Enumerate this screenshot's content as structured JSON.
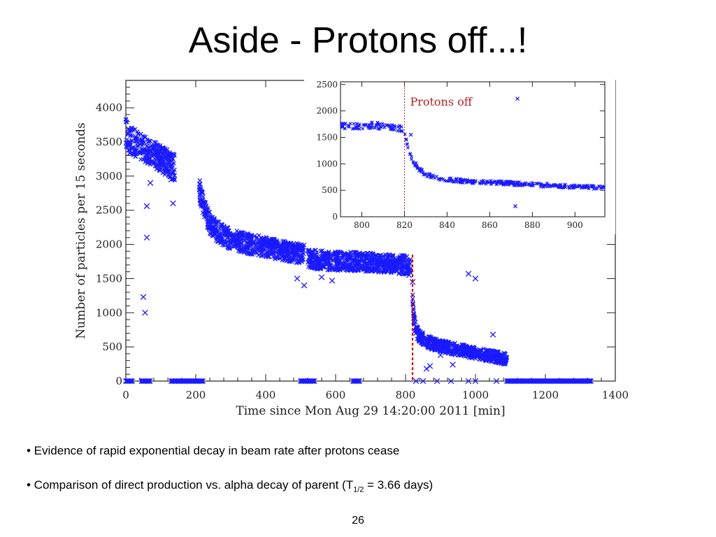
{
  "slide": {
    "title": "Aside - Protons off...!",
    "bullet1": "• Evidence of rapid exponential decay in beam rate after protons cease",
    "bullet2_pre": "• Comparison of direct production vs. alpha decay of parent (T",
    "bullet2_sub": "1/2",
    "bullet2_post": " = 3.66 days)",
    "page_number": "26"
  },
  "chart_data": [
    {
      "type": "scatter",
      "marker": "x",
      "color": "#1a1aff",
      "xlabel": "Time since Mon Aug 29 14:20:00 2011 [min]",
      "ylabel": "Number of particles per 15 seconds",
      "xlim": [
        0,
        1400
      ],
      "ylim": [
        0,
        4400
      ],
      "xticks": [
        0,
        200,
        400,
        600,
        800,
        1000,
        1200,
        1400
      ],
      "yticks": [
        0,
        500,
        1000,
        1500,
        2000,
        2500,
        3000,
        3500,
        4000
      ],
      "protons_off_x": 820,
      "segments": [
        {
          "x": [
            0,
            5,
            10,
            15,
            20,
            30,
            40,
            50,
            60,
            70,
            80,
            90,
            100,
            110,
            120,
            130,
            140
          ],
          "y": [
            3650,
            3600,
            3550,
            3530,
            3500,
            3480,
            3450,
            3420,
            3390,
            3360,
            3320,
            3290,
            3250,
            3220,
            3190,
            3150,
            3120
          ]
        },
        {
          "x": [
            210,
            220,
            230,
            240,
            250,
            260,
            280,
            300,
            320,
            340,
            360,
            380,
            400,
            420,
            440,
            460,
            480,
            500,
            510
          ],
          "y": [
            2800,
            2600,
            2450,
            2320,
            2250,
            2200,
            2130,
            2080,
            2050,
            2020,
            2000,
            1990,
            1960,
            1940,
            1920,
            1900,
            1880,
            1860,
            1850
          ]
        },
        {
          "x": [
            520,
            540,
            560,
            580,
            600,
            620,
            640,
            660,
            680,
            700,
            720,
            740,
            760,
            780,
            800,
            815
          ],
          "y": [
            1800,
            1780,
            1770,
            1760,
            1760,
            1750,
            1750,
            1750,
            1740,
            1740,
            1730,
            1720,
            1720,
            1710,
            1700,
            1700
          ]
        },
        {
          "x": [
            820,
            822,
            825,
            830,
            835,
            840,
            850,
            860,
            870,
            880,
            900,
            920,
            940,
            960,
            980,
            1000,
            1020,
            1040,
            1060,
            1080,
            1090
          ],
          "y": [
            1200,
            1000,
            850,
            750,
            690,
            650,
            610,
            580,
            560,
            540,
            510,
            490,
            470,
            450,
            430,
            410,
            390,
            370,
            350,
            330,
            320
          ]
        }
      ],
      "outliers": {
        "x": [
          50,
          55,
          60,
          60,
          65,
          70,
          135,
          130,
          490,
          510,
          560,
          590,
          800,
          810,
          820,
          860,
          870,
          900,
          935,
          980,
          1000,
          1050
        ],
        "y": [
          1230,
          1000,
          2560,
          2100,
          3200,
          2900,
          2600,
          2950,
          1500,
          1400,
          1520,
          1470,
          1580,
          1550,
          1450,
          180,
          220,
          380,
          240,
          1570,
          1500,
          680
        ]
      },
      "zero_runs": [
        [
          0,
          20
        ],
        [
          45,
          70
        ],
        [
          130,
          220
        ],
        [
          500,
          540
        ],
        [
          650,
          670
        ],
        [
          1090,
          1330
        ]
      ],
      "zero_points": [
        830,
        850,
        890,
        930,
        980,
        1000,
        1060
      ]
    },
    {
      "type": "scatter",
      "marker": "x",
      "color": "#1a1aff",
      "annotation": "Protons off",
      "xlim": [
        790,
        914
      ],
      "ylim": [
        0,
        2550
      ],
      "xticks": [
        800,
        820,
        840,
        860,
        880,
        900
      ],
      "yticks": [
        0,
        500,
        1000,
        1500,
        2000,
        2500
      ],
      "protons_off_x": 820,
      "before": {
        "x": [
          790,
          793,
          796,
          799,
          802,
          805,
          808,
          811,
          814,
          817,
          819
        ],
        "y": [
          1720,
          1710,
          1700,
          1700,
          1710,
          1730,
          1720,
          1700,
          1690,
          1680,
          1650
        ]
      },
      "after": {
        "x": [
          820,
          821,
          822,
          823,
          824,
          826,
          828,
          830,
          835,
          840,
          845,
          850,
          855,
          860,
          865,
          870,
          875,
          880,
          885,
          890,
          895,
          900,
          905,
          910,
          914
        ],
        "y": [
          1600,
          1450,
          1300,
          1150,
          1050,
          950,
          860,
          800,
          730,
          700,
          680,
          670,
          660,
          650,
          640,
          630,
          620,
          610,
          600,
          590,
          580,
          570,
          560,
          560,
          550
        ]
      },
      "outliers": {
        "x": [
          873,
          872,
          823
        ],
        "y": [
          2230,
          200,
          1550
        ]
      }
    }
  ]
}
